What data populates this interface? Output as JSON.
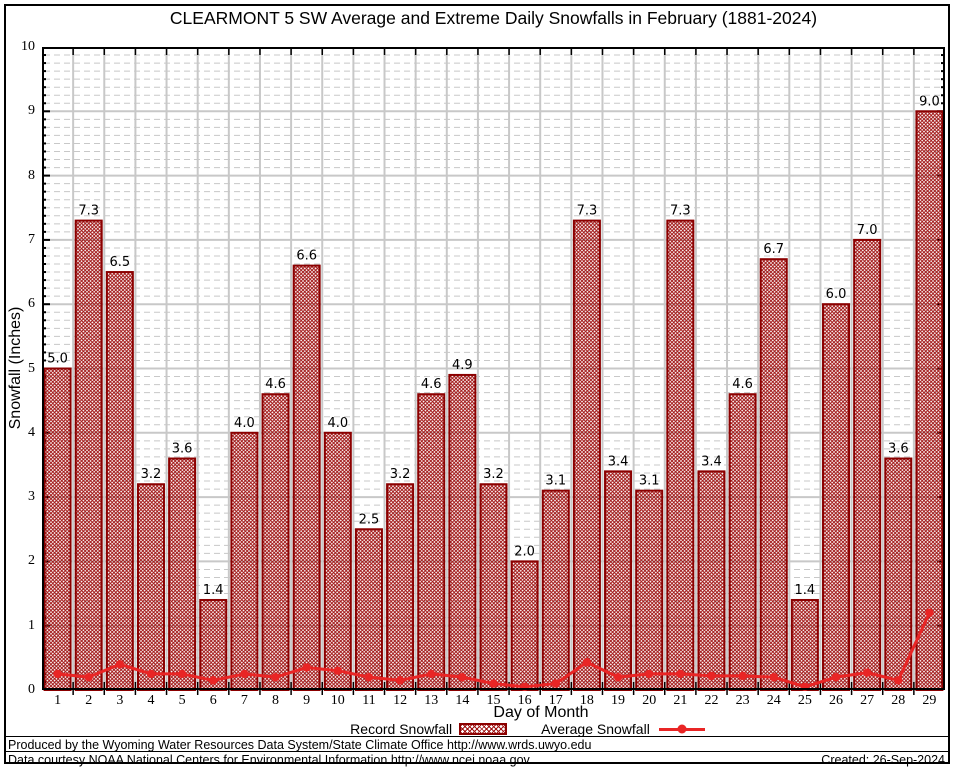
{
  "chart_data": {
    "type": "bar",
    "title": "CLEARMONT 5 SW Average and Extreme Daily Snowfalls in February (1881-2024)",
    "xlabel": "Day of Month",
    "ylabel": "Snowfall (Inches)",
    "ylim": [
      0,
      10
    ],
    "y_major_ticks": [
      0,
      1,
      2,
      3,
      4,
      5,
      6,
      7,
      8,
      9,
      10
    ],
    "y_minor_tick_step": 0.125,
    "grid": true,
    "legend_position": "bottom",
    "categories": [
      "1",
      "2",
      "3",
      "4",
      "5",
      "6",
      "7",
      "8",
      "9",
      "10",
      "11",
      "12",
      "13",
      "14",
      "15",
      "16",
      "17",
      "18",
      "19",
      "20",
      "21",
      "22",
      "23",
      "24",
      "25",
      "26",
      "27",
      "28",
      "29"
    ],
    "series": [
      {
        "name": "Record Snowfall",
        "type": "bar",
        "color": "#8b0000",
        "values": [
          5.0,
          7.3,
          6.5,
          3.2,
          3.6,
          1.4,
          4.0,
          4.6,
          6.6,
          4.0,
          2.5,
          3.2,
          4.6,
          4.9,
          3.2,
          2.0,
          3.1,
          7.3,
          3.4,
          3.1,
          7.3,
          3.4,
          4.6,
          6.7,
          1.4,
          6.0,
          7.0,
          3.6,
          9.0
        ],
        "labels": [
          "5.0",
          "7.3",
          "6.5",
          "3.2",
          "3.6",
          "1.4",
          "4.0",
          "4.6",
          "6.6",
          "4.0",
          "2.5",
          "3.2",
          "4.6",
          "4.9",
          "3.2",
          "2.0",
          "3.1",
          "7.3",
          "3.4",
          "3.1",
          "7.3",
          "3.4",
          "4.6",
          "6.7",
          "1.4",
          "6.0",
          "7.0",
          "3.6",
          "9.0"
        ]
      },
      {
        "name": "Average Snowfall",
        "type": "line",
        "color": "#e92525",
        "values": [
          0.25,
          0.2,
          0.4,
          0.25,
          0.25,
          0.15,
          0.25,
          0.2,
          0.35,
          0.3,
          0.2,
          0.15,
          0.25,
          0.2,
          0.1,
          0.05,
          0.1,
          0.43,
          0.2,
          0.25,
          0.25,
          0.22,
          0.22,
          0.2,
          0.05,
          0.2,
          0.27,
          0.15,
          1.2
        ]
      }
    ]
  },
  "footer": {
    "produced_by": "Produced by the Wyoming Water Resources Data System/State Climate Office http://www.wrds.uwyo.edu",
    "data_courtesy": "Data courtesy NOAA National Centers for Environmental Information http://www.ncei.noaa.gov",
    "created": "Created: 26-Sep-2024"
  },
  "colors": {
    "bar_border": "#8b0000",
    "bar_hatch": "#a11414",
    "average_line": "#e92525",
    "grid": "#c8c8c8",
    "axis": "#000000"
  }
}
